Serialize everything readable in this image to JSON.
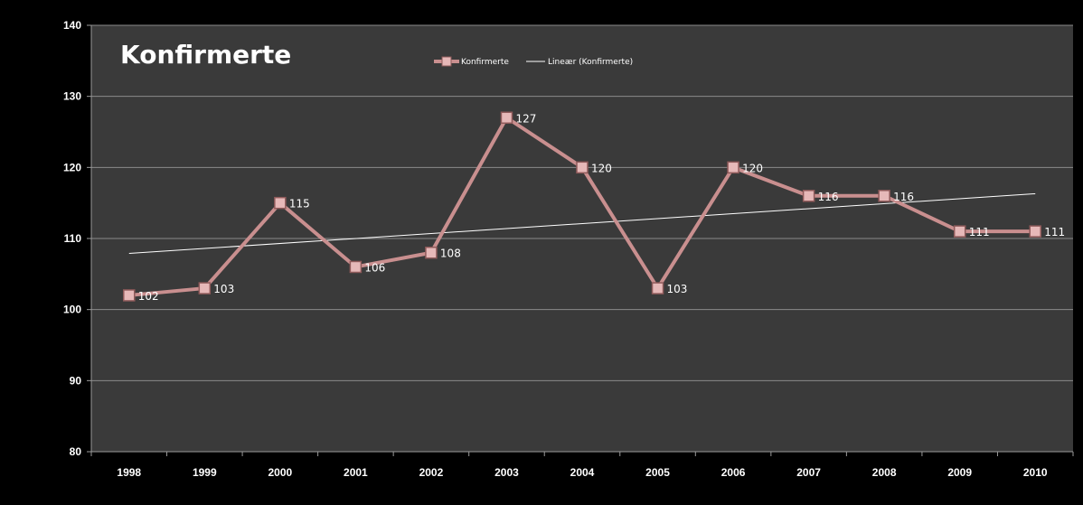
{
  "chart_data": {
    "type": "line",
    "title": "Konfirmerte",
    "xlabel": "",
    "ylabel": "",
    "categories": [
      "1998",
      "1999",
      "2000",
      "2001",
      "2002",
      "2003",
      "2004",
      "2005",
      "2006",
      "2007",
      "2008",
      "2009",
      "2010"
    ],
    "series": [
      {
        "name": "Konfirmerte",
        "values": [
          102,
          103,
          115,
          106,
          108,
          127,
          120,
          103,
          120,
          116,
          116,
          111,
          111
        ]
      }
    ],
    "trendline": {
      "name": "Lineær (Konfirmerte)",
      "type": "linear",
      "start_value": 107.9,
      "end_value": 116.3
    },
    "data_labels": [
      "102",
      "103",
      "115",
      "106",
      "108",
      "127",
      "120",
      "103",
      "120",
      "116",
      "116",
      "111",
      "111"
    ],
    "ylim": [
      80,
      140
    ],
    "yticks": [
      "80",
      "90",
      "100",
      "110",
      "120",
      "130",
      "140"
    ],
    "grid": true,
    "legend_position": "top",
    "colors": {
      "background": "#000000",
      "plot_area": "#3a3a3a",
      "series_line": "#c98f8f",
      "marker_fill": "#e6b8b8",
      "marker_edge": "#8f5a5a",
      "trendline": "#ffffff",
      "gridline": "#8a8a8a",
      "text": "#ffffff"
    }
  }
}
